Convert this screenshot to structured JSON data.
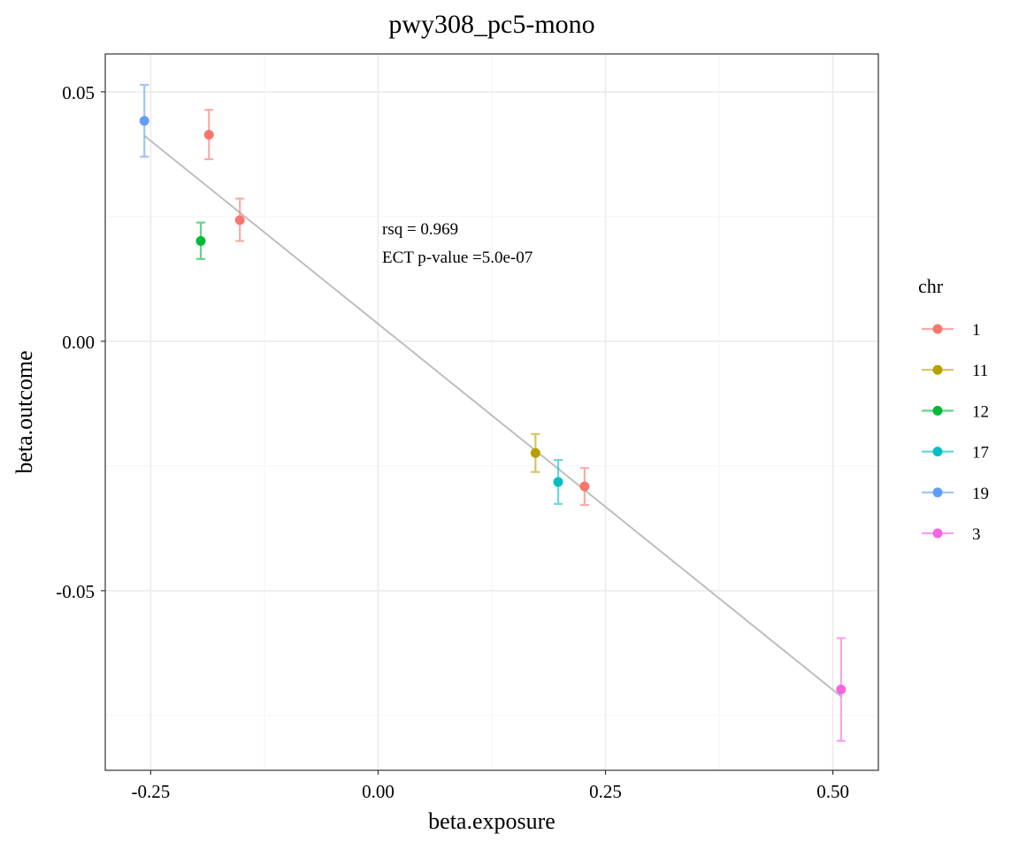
{
  "chart_data": {
    "type": "scatter",
    "title": "pwy308_pc5-mono",
    "xlabel": "beta.exposure",
    "ylabel": "beta.outcome",
    "xlim": [
      -0.3,
      0.55
    ],
    "ylim": [
      -0.086,
      0.0576
    ],
    "x_ticks": [
      -0.25,
      0,
      0.25,
      0.5
    ],
    "x_tick_labels": [
      "-0.25",
      "0.00",
      "0.25",
      "0.50"
    ],
    "y_ticks": [
      0.05,
      0,
      -0.05
    ],
    "y_tick_labels": [
      "0.05",
      "0.00",
      "-0.05"
    ],
    "grid": true,
    "legend": {
      "title": "chr",
      "position": "right",
      "entries": [
        {
          "label": "1",
          "color": "#F8766D"
        },
        {
          "label": "11",
          "color": "#B79F00"
        },
        {
          "label": "12",
          "color": "#00BA38"
        },
        {
          "label": "17",
          "color": "#00BFC4"
        },
        {
          "label": "19",
          "color": "#619CFF"
        },
        {
          "label": "3",
          "color": "#F564E3"
        }
      ]
    },
    "points": [
      {
        "chr": "19",
        "x": -0.257,
        "y": 0.0442,
        "ymin": 0.037,
        "ymax": 0.0514
      },
      {
        "chr": "1",
        "x": -0.186,
        "y": 0.0414,
        "ymin": 0.0365,
        "ymax": 0.0464
      },
      {
        "chr": "1",
        "x": -0.152,
        "y": 0.0243,
        "ymin": 0.0201,
        "ymax": 0.0286
      },
      {
        "chr": "12",
        "x": -0.195,
        "y": 0.0201,
        "ymin": 0.0165,
        "ymax": 0.0238
      },
      {
        "chr": "11",
        "x": 0.173,
        "y": -0.0224,
        "ymin": -0.0262,
        "ymax": -0.0186
      },
      {
        "chr": "17",
        "x": 0.198,
        "y": -0.0282,
        "ymin": -0.0326,
        "ymax": -0.0238
      },
      {
        "chr": "1",
        "x": 0.227,
        "y": -0.0291,
        "ymin": -0.0328,
        "ymax": -0.0254
      },
      {
        "chr": "3",
        "x": 0.509,
        "y": -0.0698,
        "ymin": -0.0801,
        "ymax": -0.0595
      }
    ],
    "fit_line": {
      "color": "#BEBEBE",
      "x": [
        -0.257,
        0.509
      ],
      "y": [
        0.0412,
        -0.0712
      ]
    },
    "annotations": [
      "rsq =  0.969",
      "ECT p-value =5.0e-07"
    ]
  }
}
